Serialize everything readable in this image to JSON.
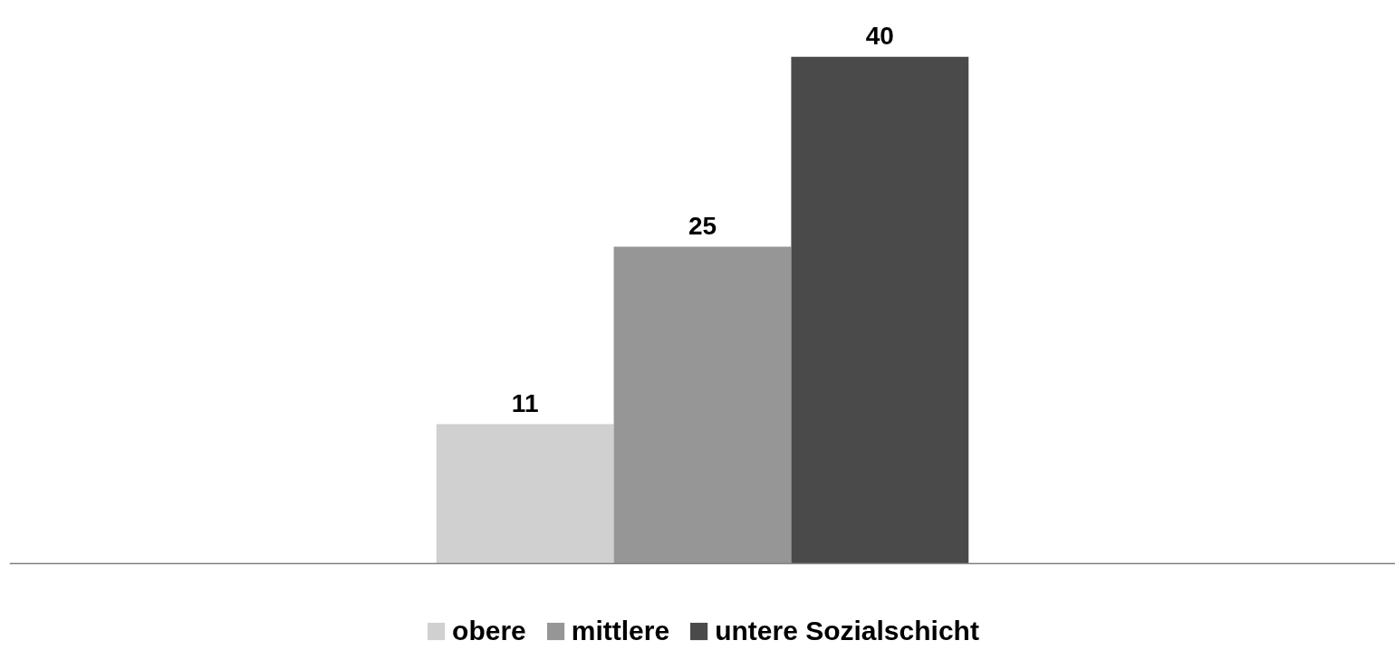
{
  "chart_data": {
    "type": "bar",
    "categories": [
      null
    ],
    "series": [
      {
        "name": "obere",
        "color": "#d0d0d0",
        "values": [
          11
        ]
      },
      {
        "name": "mittlere",
        "color": "#969696",
        "values": [
          25
        ]
      },
      {
        "name": "untere Sozialschicht",
        "color": "#4a4a4a",
        "values": [
          40
        ]
      }
    ],
    "data_labels": true,
    "legend": "bottom",
    "grid": false
  }
}
